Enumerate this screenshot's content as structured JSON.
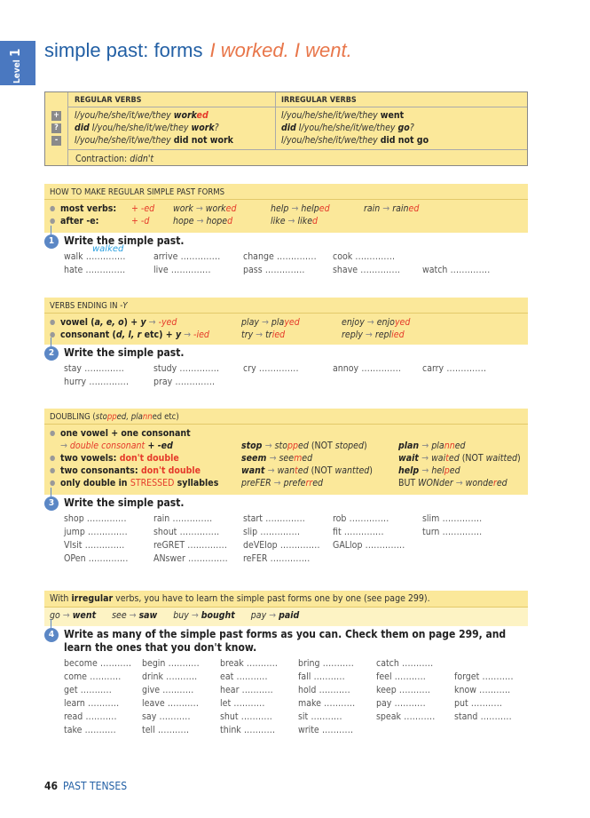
{
  "level": {
    "label": "Level",
    "number": "1"
  },
  "title": {
    "main": "simple past: forms",
    "example": "I worked.  I went."
  },
  "forms_table": {
    "headers": [
      "REGULAR VERBS",
      "IRREGULAR VERBS"
    ],
    "symbols": [
      "+",
      "?",
      "-"
    ],
    "regular": [
      [
        [
          "I/you/he/she/it/we/they ",
          "i"
        ],
        [
          "work",
          "ib"
        ],
        [
          "ed",
          "ibr"
        ]
      ],
      [
        [
          "did",
          "ib"
        ],
        [
          " I/you/he/she/it/we/they ",
          "i"
        ],
        [
          "work",
          "ib"
        ],
        [
          "?",
          "i"
        ]
      ],
      [
        [
          "I/you/he/she/it/we/they ",
          "i"
        ],
        [
          "did not work",
          "b"
        ]
      ]
    ],
    "irregular": [
      [
        [
          "I/you/he/she/it/we/they ",
          "i"
        ],
        [
          "went",
          "b"
        ]
      ],
      [
        [
          "did",
          "ib"
        ],
        [
          " I/you/he/she/it/we/they ",
          "i"
        ],
        [
          "go",
          "ib"
        ],
        [
          "?",
          "i"
        ]
      ],
      [
        [
          "I/you/he/she/it/we/they ",
          "i"
        ],
        [
          "did not go",
          "b"
        ]
      ]
    ],
    "contraction": [
      [
        "Contraction: ",
        ""
      ],
      [
        "didn't",
        "i"
      ]
    ]
  },
  "box1": {
    "heading": [
      [
        "HOW TO MAKE REGULAR SIMPLE PAST FORMS",
        ""
      ]
    ],
    "rows": [
      [
        [
          [
            "most verbs:",
            "b"
          ]
        ],
        [
          [
            "+ -ed",
            "ir"
          ]
        ],
        [
          [
            "work ",
            "i"
          ],
          [
            "→ ",
            "a"
          ],
          [
            "work",
            "i"
          ],
          [
            "ed",
            "ir"
          ]
        ],
        [
          [
            "help ",
            "i"
          ],
          [
            "→ ",
            "a"
          ],
          [
            "help",
            "i"
          ],
          [
            "ed",
            "ir"
          ]
        ],
        [
          [
            "rain ",
            "i"
          ],
          [
            "→ ",
            "a"
          ],
          [
            "rain",
            "i"
          ],
          [
            "ed",
            "ir"
          ]
        ]
      ],
      [
        [
          [
            "after -e:",
            "b"
          ]
        ],
        [
          [
            "+ -d",
            "ir"
          ]
        ],
        [
          [
            "hope ",
            "i"
          ],
          [
            "→ ",
            "a"
          ],
          [
            "hope",
            "i"
          ],
          [
            "d",
            "ir"
          ]
        ],
        [
          [
            "like ",
            "i"
          ],
          [
            "→ ",
            "a"
          ],
          [
            "like",
            "i"
          ],
          [
            "d",
            "ir"
          ]
        ]
      ]
    ]
  },
  "ex1": {
    "number": "1",
    "title": "Write the simple past.",
    "answer": "walked",
    "rows": [
      [
        "walk",
        "arrive",
        "change",
        "cook"
      ],
      [
        "hate",
        "live",
        "pass",
        "shave",
        "watch"
      ]
    ]
  },
  "box2": {
    "heading": [
      [
        "VERBS ENDING IN -",
        ""
      ],
      [
        "Y",
        "i"
      ]
    ],
    "rows": [
      [
        [
          [
            "vowel (",
            "b"
          ],
          [
            "a, e, o",
            "ib"
          ],
          [
            ") + ",
            "b"
          ],
          [
            "y",
            "ib"
          ],
          [
            " → ",
            "a"
          ],
          [
            "-yed",
            "ir"
          ]
        ],
        [
          [
            "play ",
            "i"
          ],
          [
            "→ ",
            "a"
          ],
          [
            "pla",
            "i"
          ],
          [
            "yed",
            "ir"
          ]
        ],
        [
          [
            "enjoy ",
            "i"
          ],
          [
            "→ ",
            "a"
          ],
          [
            "enjo",
            "i"
          ],
          [
            "yed",
            "ir"
          ]
        ]
      ],
      [
        [
          [
            "consonant (",
            "b"
          ],
          [
            "d, l, r",
            "ib"
          ],
          [
            " etc) + ",
            "b"
          ],
          [
            "y",
            "ib"
          ],
          [
            " → ",
            "a"
          ],
          [
            "-ied",
            "ir"
          ]
        ],
        [
          [
            "try ",
            "i"
          ],
          [
            "→ ",
            "a"
          ],
          [
            "tr",
            "i"
          ],
          [
            "ied",
            "ir"
          ]
        ],
        [
          [
            "reply ",
            "i"
          ],
          [
            "→ ",
            "a"
          ],
          [
            "repl",
            "i"
          ],
          [
            "ied",
            "ir"
          ]
        ]
      ]
    ]
  },
  "ex2": {
    "number": "2",
    "title": "Write the simple past.",
    "rows": [
      [
        "stay",
        "study",
        "cry",
        "annoy",
        "carry"
      ],
      [
        "hurry",
        "pray"
      ]
    ]
  },
  "box3": {
    "heading": [
      [
        "DOUBLING (",
        ""
      ],
      [
        "sto",
        "i"
      ],
      [
        "pp",
        "ir"
      ],
      [
        "ed, pla",
        "i"
      ],
      [
        "nn",
        "ir"
      ],
      [
        "ed",
        ""
      ],
      [
        " etc)",
        ""
      ]
    ],
    "rows": [
      [
        [
          [
            "one vowel + one consonant",
            "b"
          ]
        ]
      ],
      [
        [
          [
            "→ ",
            "a"
          ],
          [
            "double consonant",
            "ir"
          ],
          [
            " + ",
            "b"
          ],
          [
            "-ed",
            "ib"
          ]
        ],
        [
          [
            "stop ",
            "ib"
          ],
          [
            "→ ",
            "a"
          ],
          [
            "sto",
            "i"
          ],
          [
            "pp",
            "ir"
          ],
          [
            "ed ",
            "i"
          ],
          [
            "(NOT ",
            ""
          ],
          [
            "stoped",
            "i"
          ],
          [
            ")",
            ""
          ]
        ],
        [
          [
            "plan ",
            "ib"
          ],
          [
            "→ ",
            "a"
          ],
          [
            "pla",
            "i"
          ],
          [
            "nn",
            "ir"
          ],
          [
            "ed",
            "i"
          ]
        ]
      ],
      [
        [
          [
            "two vowels: ",
            "b"
          ],
          [
            "don't double",
            "br"
          ]
        ],
        [
          [
            "seem ",
            "ib"
          ],
          [
            "→ ",
            "a"
          ],
          [
            "see",
            "i"
          ],
          [
            "m",
            "ir"
          ],
          [
            "ed",
            "i"
          ]
        ],
        [
          [
            "wait ",
            "ib"
          ],
          [
            "→ ",
            "a"
          ],
          [
            "wai",
            "i"
          ],
          [
            "t",
            "ir"
          ],
          [
            "ed ",
            "i"
          ],
          [
            "(NOT ",
            ""
          ],
          [
            "waitted",
            "i"
          ],
          [
            ")",
            ""
          ]
        ]
      ],
      [
        [
          [
            "two consonants: ",
            "b"
          ],
          [
            "don't double",
            "br"
          ]
        ],
        [
          [
            "want ",
            "ib"
          ],
          [
            "→ ",
            "a"
          ],
          [
            "wan",
            "i"
          ],
          [
            "t",
            "ir"
          ],
          [
            "ed ",
            "i"
          ],
          [
            "(NOT ",
            ""
          ],
          [
            "wantted",
            "i"
          ],
          [
            ")",
            ""
          ]
        ],
        [
          [
            "help ",
            "ib"
          ],
          [
            "→ ",
            "a"
          ],
          [
            "hel",
            "i"
          ],
          [
            "p",
            "ir"
          ],
          [
            "ed",
            "i"
          ]
        ]
      ],
      [
        [
          [
            "only double in ",
            "b"
          ],
          [
            "STRESSED",
            "r"
          ],
          [
            " syllables",
            "b"
          ]
        ],
        [
          [
            "preFER ",
            "i"
          ],
          [
            "→ ",
            "a"
          ],
          [
            "prefe",
            "i"
          ],
          [
            "rr",
            "ir"
          ],
          [
            "ed",
            "i"
          ]
        ],
        [
          [
            "BUT ",
            ""
          ],
          [
            "WONder ",
            "i"
          ],
          [
            "→ ",
            "a"
          ],
          [
            "wonde",
            "i"
          ],
          [
            "r",
            "ir"
          ],
          [
            "ed",
            "i"
          ]
        ]
      ]
    ]
  },
  "ex3": {
    "number": "3",
    "title": "Write the simple past.",
    "rows": [
      [
        "shop",
        "rain",
        "start",
        "rob",
        "slim"
      ],
      [
        "jump",
        "shout",
        "slip",
        "fit",
        "turn"
      ],
      [
        "VIsit",
        "reGRET",
        "deVElop",
        "GALlop"
      ],
      [
        "OPen",
        "ANswer",
        "reFER"
      ]
    ]
  },
  "box4": {
    "heading": [
      [
        "With ",
        ""
      ],
      [
        "irregular",
        "b"
      ],
      [
        " verbs, you have to learn the simple past forms one by one (see page 299).",
        ""
      ]
    ],
    "row": [
      [
        "go ",
        "i"
      ],
      [
        "→ ",
        "a"
      ],
      [
        "went",
        "ib"
      ],
      [
        "      see ",
        "i"
      ],
      [
        "→ ",
        "a"
      ],
      [
        "saw",
        "ib"
      ],
      [
        "      buy ",
        "i"
      ],
      [
        "→ ",
        "a"
      ],
      [
        "bought",
        "ib"
      ],
      [
        "      pay ",
        "i"
      ],
      [
        "→ ",
        "a"
      ],
      [
        "paid",
        "ib"
      ]
    ]
  },
  "ex4": {
    "number": "4",
    "title": "Write as many of the simple past forms as you can. Check them on page 299, and learn the ones that you don't know.",
    "rows": [
      [
        "become",
        "begin",
        "break",
        "bring",
        "catch"
      ],
      [
        "come",
        "drink",
        "eat",
        "fall",
        "feel",
        "forget"
      ],
      [
        "get",
        "give",
        "hear",
        "hold",
        "keep",
        "know"
      ],
      [
        "learn",
        "leave",
        "let",
        "make",
        "pay",
        "put"
      ],
      [
        "read",
        "say",
        "shut",
        "sit",
        "speak",
        "stand"
      ],
      [
        "take",
        "tell",
        "think",
        "write"
      ]
    ]
  },
  "footer": {
    "page": "46",
    "section": "PAST TENSES"
  }
}
